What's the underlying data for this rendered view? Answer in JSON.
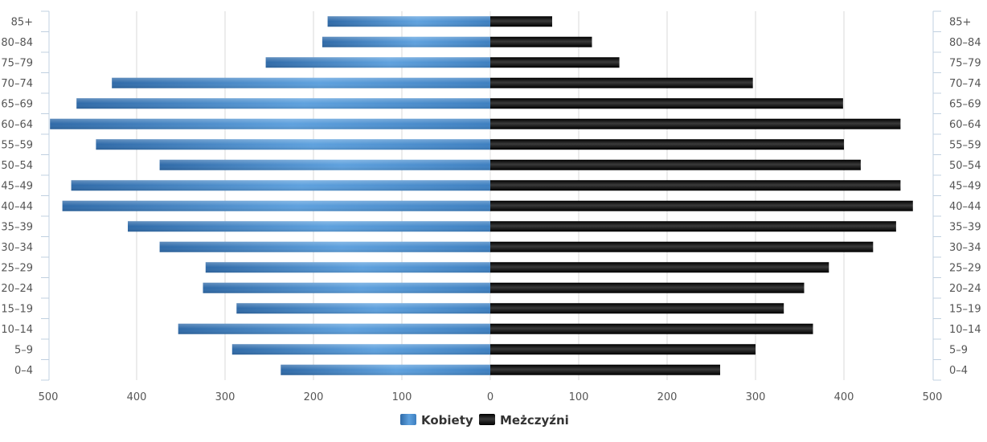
{
  "chart_data": {
    "type": "bar",
    "orientation": "horizontal",
    "layout": "population-pyramid",
    "categories": [
      "85+",
      "80-84",
      "75-79",
      "70-74",
      "65-69",
      "60-64",
      "55-59",
      "50-54",
      "45-49",
      "40-44",
      "35-39",
      "30-34",
      "25-29",
      "20-24",
      "15-19",
      "10-14",
      "5-9",
      "0-4"
    ],
    "series": [
      {
        "name": "Kobiety",
        "side": "left",
        "color": "#4a8fd0",
        "values": [
          184,
          190,
          254,
          428,
          468,
          498,
          446,
          374,
          474,
          484,
          410,
          374,
          322,
          325,
          287,
          353,
          292,
          237
        ]
      },
      {
        "name": "Meżczyźni",
        "side": "right",
        "color": "#1e1e1e",
        "values": [
          70,
          115,
          146,
          297,
          399,
          464,
          400,
          419,
          464,
          478,
          459,
          433,
          383,
          355,
          332,
          365,
          300,
          260
        ]
      }
    ],
    "x_ticks": [
      "500",
      "400",
      "300",
      "200",
      "100",
      "0",
      "100",
      "200",
      "300",
      "400",
      "500"
    ],
    "xlim": [
      -500,
      500
    ],
    "grid": true,
    "legend": "bottom-center",
    "title": "",
    "xlabel": "",
    "ylabel": ""
  }
}
